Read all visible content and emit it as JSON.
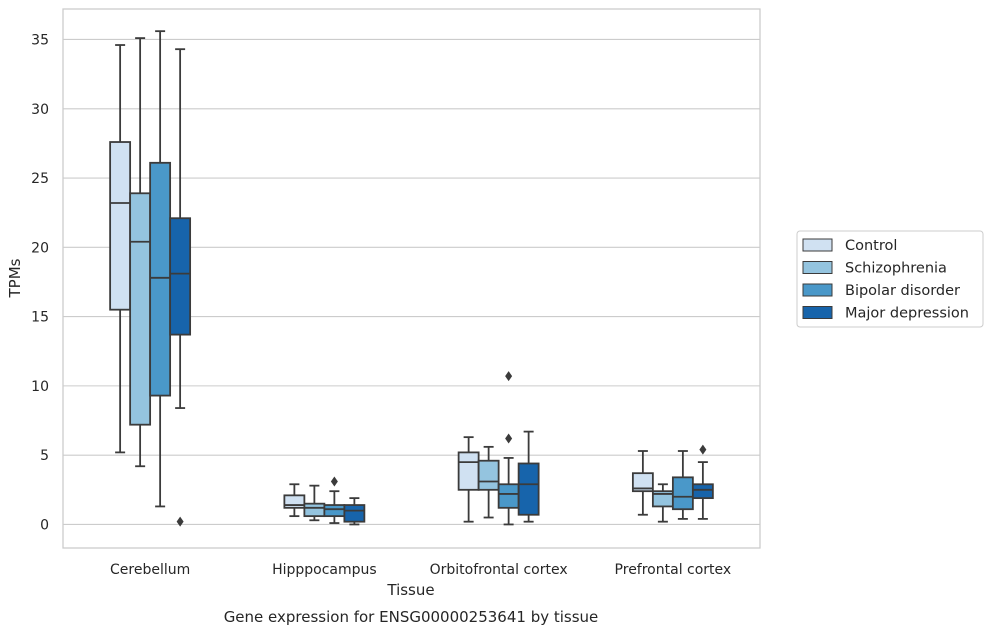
{
  "chart_data": {
    "type": "box",
    "title": "",
    "xlabel": "Tissue",
    "ylabel": "TPMs",
    "caption": "Gene expression for ENSG00000253641 by tissue",
    "ylim": [
      -1.7,
      37.2
    ],
    "yticks": [
      0,
      5,
      10,
      15,
      20,
      25,
      30,
      35
    ],
    "grid": true,
    "legend_position": "right",
    "categories": [
      "Cerebellum",
      "Hipppocampus",
      "Orbitofrontal cortex",
      "Prefrontal cortex"
    ],
    "series": [
      {
        "name": "Control",
        "color": "#d0e1f2",
        "boxes": [
          {
            "whisker_low": 5.2,
            "q1": 15.5,
            "median": 23.2,
            "q3": 27.6,
            "whisker_high": 34.6,
            "outliers": []
          },
          {
            "whisker_low": 0.6,
            "q1": 1.2,
            "median": 1.4,
            "q3": 2.1,
            "whisker_high": 2.9,
            "outliers": []
          },
          {
            "whisker_low": 0.2,
            "q1": 2.5,
            "median": 4.5,
            "q3": 5.2,
            "whisker_high": 6.3,
            "outliers": []
          },
          {
            "whisker_low": 0.7,
            "q1": 2.4,
            "median": 2.6,
            "q3": 3.7,
            "whisker_high": 5.3,
            "outliers": []
          }
        ]
      },
      {
        "name": "Schizophrenia",
        "color": "#94c4df",
        "boxes": [
          {
            "whisker_low": 4.2,
            "q1": 7.2,
            "median": 20.4,
            "q3": 23.9,
            "whisker_high": 35.1,
            "outliers": []
          },
          {
            "whisker_low": 0.3,
            "q1": 0.6,
            "median": 1.2,
            "q3": 1.5,
            "whisker_high": 2.8,
            "outliers": []
          },
          {
            "whisker_low": 0.5,
            "q1": 2.5,
            "median": 3.1,
            "q3": 4.6,
            "whisker_high": 5.6,
            "outliers": []
          },
          {
            "whisker_low": 0.2,
            "q1": 1.3,
            "median": 2.2,
            "q3": 2.4,
            "whisker_high": 2.9,
            "outliers": []
          }
        ]
      },
      {
        "name": "Bipolar disorder",
        "color": "#4a98c9",
        "boxes": [
          {
            "whisker_low": 1.3,
            "q1": 9.3,
            "median": 17.8,
            "q3": 26.1,
            "whisker_high": 35.6,
            "outliers": []
          },
          {
            "whisker_low": 0.1,
            "q1": 0.6,
            "median": 1.1,
            "q3": 1.4,
            "whisker_high": 2.4,
            "outliers": [
              3.1
            ]
          },
          {
            "whisker_low": 0.0,
            "q1": 1.2,
            "median": 2.2,
            "q3": 2.9,
            "whisker_high": 4.8,
            "outliers": [
              6.2,
              10.7
            ]
          },
          {
            "whisker_low": 0.4,
            "q1": 1.1,
            "median": 2.0,
            "q3": 3.4,
            "whisker_high": 5.3,
            "outliers": []
          }
        ]
      },
      {
        "name": "Major depression",
        "color": "#1764ab",
        "boxes": [
          {
            "whisker_low": 8.4,
            "q1": 13.7,
            "median": 18.1,
            "q3": 22.1,
            "whisker_high": 34.3,
            "outliers": [
              0.2
            ]
          },
          {
            "whisker_low": 0.0,
            "q1": 0.2,
            "median": 1.0,
            "q3": 1.4,
            "whisker_high": 1.9,
            "outliers": []
          },
          {
            "whisker_low": 0.2,
            "q1": 0.7,
            "median": 2.9,
            "q3": 4.4,
            "whisker_high": 6.7,
            "outliers": []
          },
          {
            "whisker_low": 0.4,
            "q1": 1.9,
            "median": 2.5,
            "q3": 2.9,
            "whisker_high": 4.5,
            "outliers": [
              5.4
            ]
          }
        ]
      }
    ]
  }
}
